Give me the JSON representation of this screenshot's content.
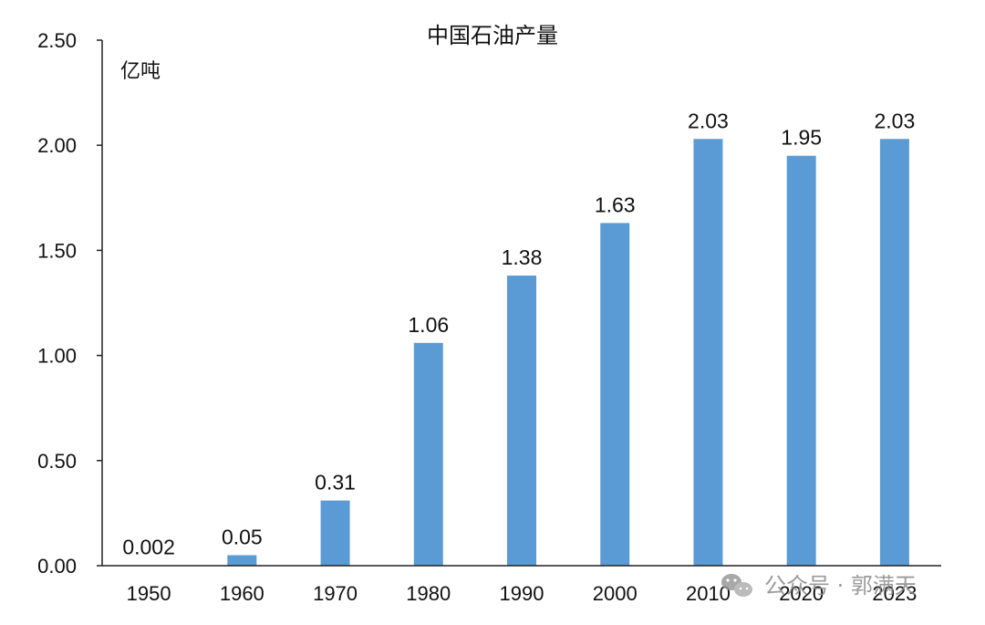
{
  "chart_data": {
    "type": "bar",
    "title": "中国石油产量",
    "unit_label": "亿吨",
    "categories": [
      "1950",
      "1960",
      "1970",
      "1980",
      "1990",
      "2000",
      "2010",
      "2020",
      "2023"
    ],
    "values": [
      0.002,
      0.05,
      0.31,
      1.06,
      1.38,
      1.63,
      2.03,
      1.95,
      2.03
    ],
    "value_labels": [
      "0.002",
      "0.05",
      "0.31",
      "1.06",
      "1.38",
      "1.63",
      "2.03",
      "1.95",
      "2.03"
    ],
    "ylim": [
      0,
      2.5
    ],
    "yticks": [
      "0.00",
      "0.50",
      "1.00",
      "1.50",
      "2.00",
      "2.50"
    ],
    "bar_color": "#5b9bd5",
    "grid": false,
    "legend": "none"
  },
  "watermark": {
    "text": "公众号 · 郭满天",
    "icon": "wechat-icon"
  }
}
